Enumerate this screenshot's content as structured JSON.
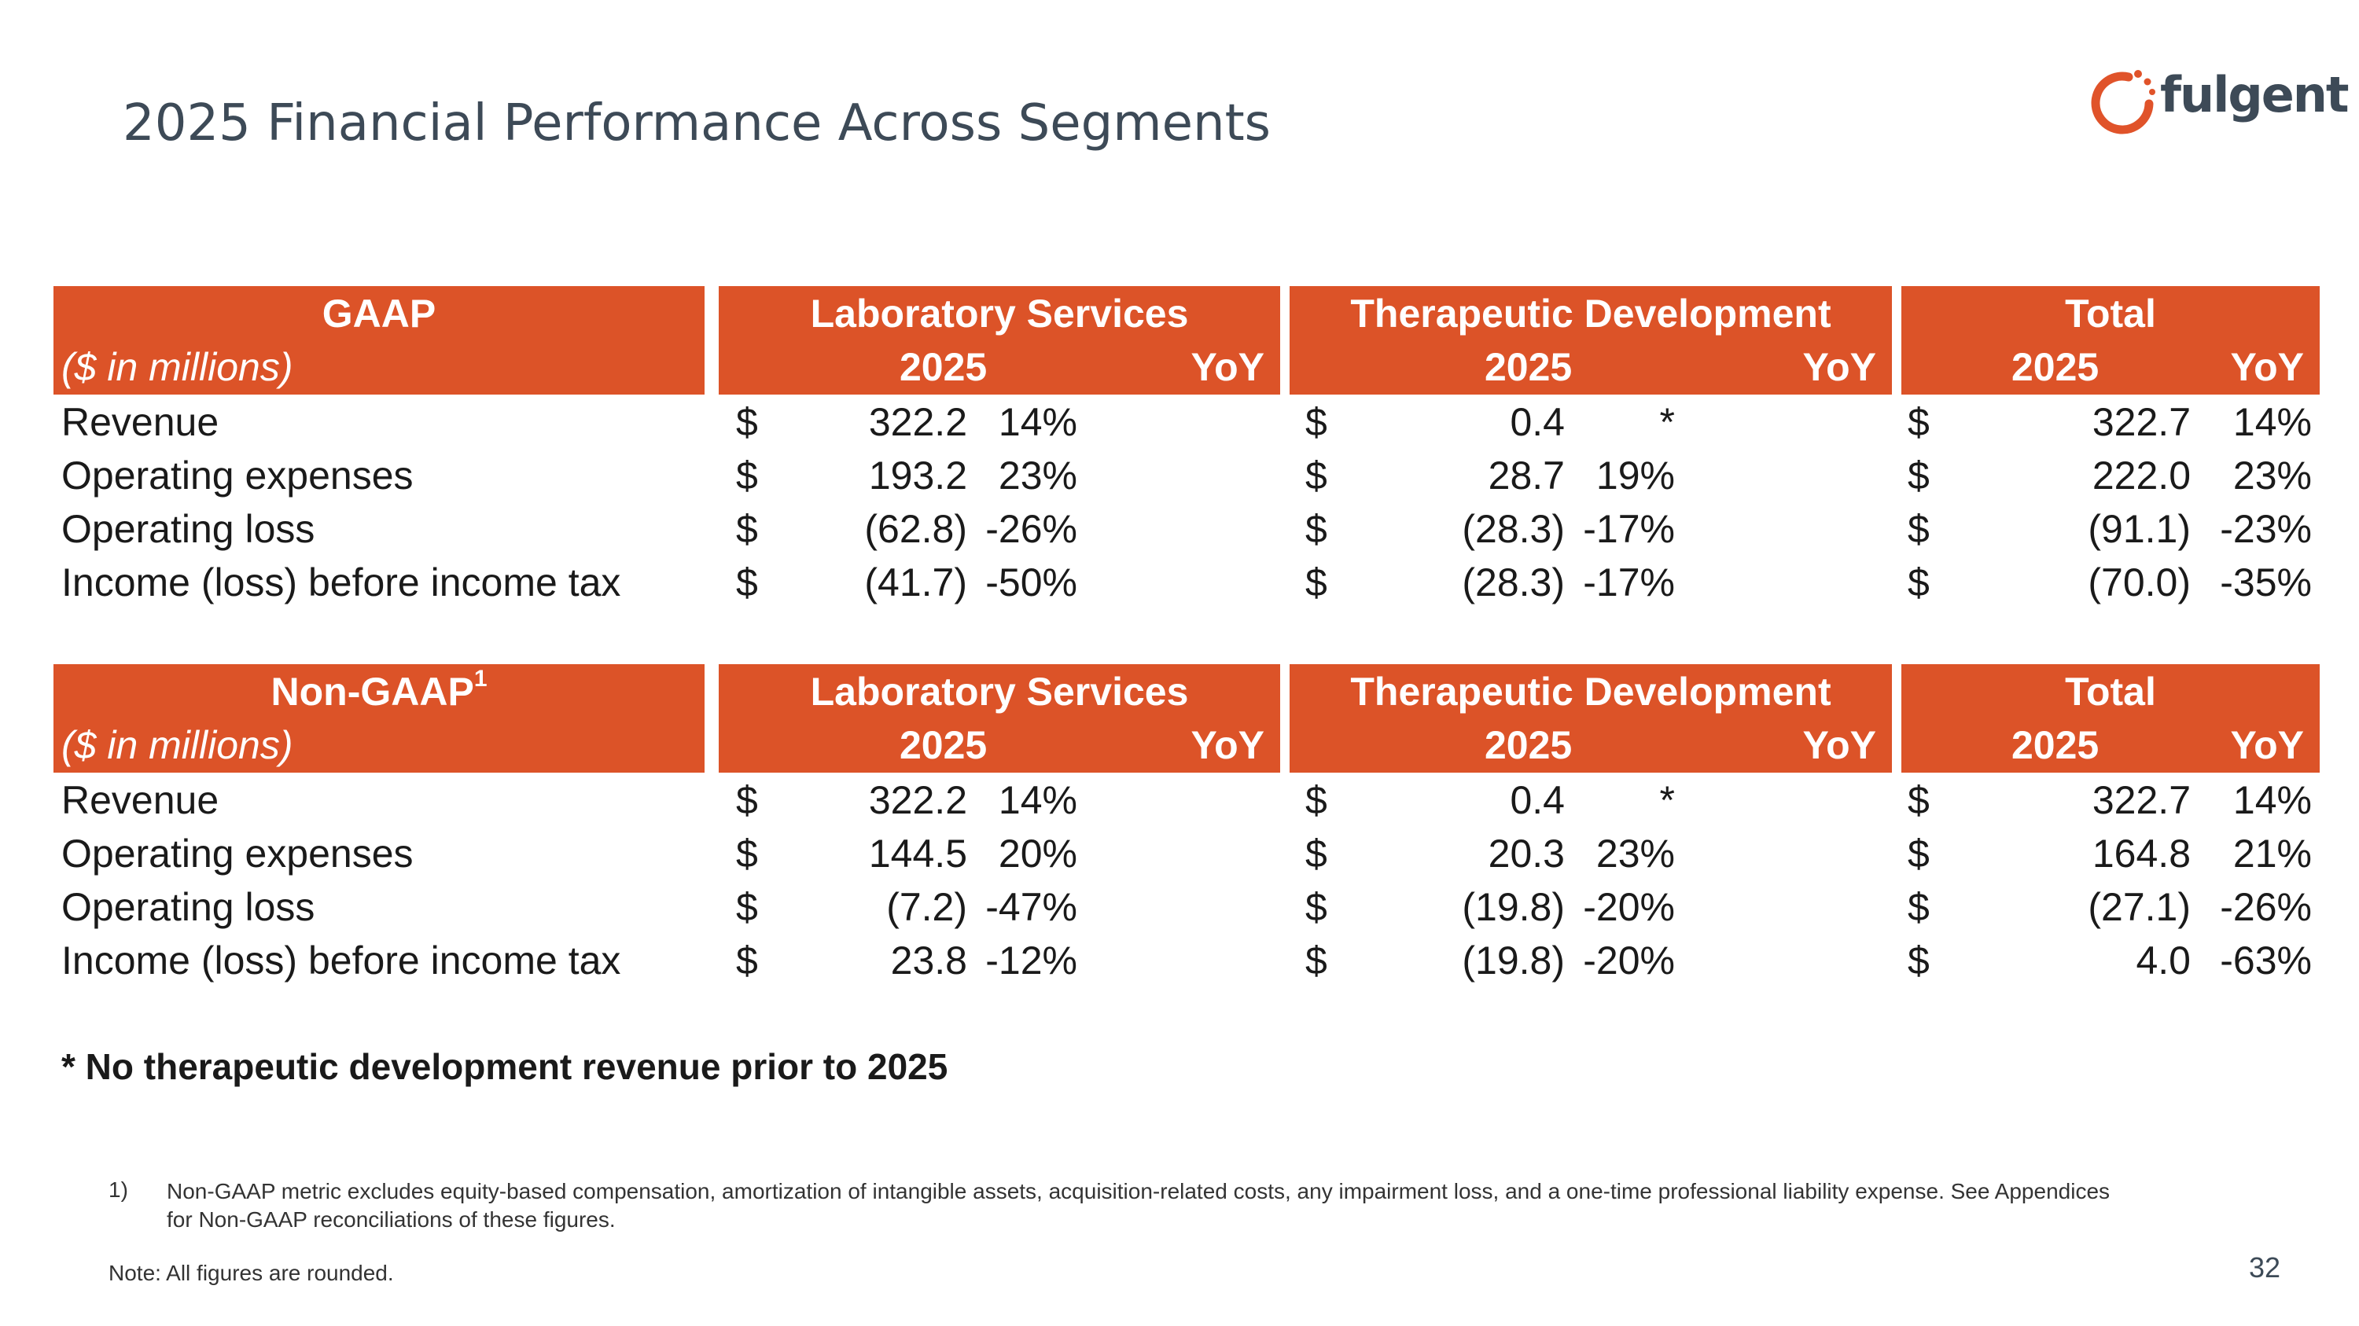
{
  "title": "2025 Financial Performance Across Segments",
  "logo": {
    "text": "fulgent",
    "accent": "#e0532a"
  },
  "header_color": "#dc5328",
  "sections": [
    {
      "heading": "GAAP",
      "heading_sup": "",
      "units": "($ in millions)",
      "col_groups": [
        "Laboratory Services",
        "Therapeutic Development",
        "Total"
      ],
      "sub_year": "2025",
      "sub_yoy": "YoY",
      "currency": "$",
      "rows": [
        {
          "label": "Revenue",
          "lab": "322.2",
          "lab_yoy": "14%",
          "ther": "0.4",
          "ther_yoy": "*",
          "tot": "322.7",
          "tot_yoy": "14%"
        },
        {
          "label": "Operating expenses",
          "lab": "193.2",
          "lab_yoy": "23%",
          "ther": "28.7",
          "ther_yoy": "19%",
          "tot": "222.0",
          "tot_yoy": "23%"
        },
        {
          "label": "Operating loss",
          "lab": "(62.8)",
          "lab_yoy": "-26%",
          "ther": "(28.3)",
          "ther_yoy": "-17%",
          "tot": "(91.1)",
          "tot_yoy": "-23%"
        },
        {
          "label": "Income (loss) before income tax",
          "lab": "(41.7)",
          "lab_yoy": "-50%",
          "ther": "(28.3)",
          "ther_yoy": "-17%",
          "tot": "(70.0)",
          "tot_yoy": "-35%"
        }
      ]
    },
    {
      "heading": "Non-GAAP",
      "heading_sup": "1",
      "units": "($ in millions)",
      "col_groups": [
        "Laboratory Services",
        "Therapeutic Development",
        "Total"
      ],
      "sub_year": "2025",
      "sub_yoy": "YoY",
      "currency": "$",
      "rows": [
        {
          "label": "Revenue",
          "lab": "322.2",
          "lab_yoy": "14%",
          "ther": "0.4",
          "ther_yoy": "*",
          "tot": "322.7",
          "tot_yoy": "14%"
        },
        {
          "label": "Operating expenses",
          "lab": "144.5",
          "lab_yoy": "20%",
          "ther": "20.3",
          "ther_yoy": "23%",
          "tot": "164.8",
          "tot_yoy": "21%"
        },
        {
          "label": "Operating loss",
          "lab": "(7.2)",
          "lab_yoy": "-47%",
          "ther": "(19.8)",
          "ther_yoy": "-20%",
          "tot": "(27.1)",
          "tot_yoy": "-26%"
        },
        {
          "label": "Income (loss) before income tax",
          "lab": "23.8",
          "lab_yoy": "-12%",
          "ther": "(19.8)",
          "ther_yoy": "-20%",
          "tot": "4.0",
          "tot_yoy": "-63%"
        }
      ]
    }
  ],
  "star_note": "* No therapeutic development revenue prior to 2025",
  "footnote_num": "1)",
  "footnote": "Non-GAAP metric excludes equity-based compensation, amortization of intangible assets, acquisition-related costs, any impairment loss, and a one-time professional liability expense.  See Appendices for Non-GAAP reconciliations of these figures.",
  "note": "Note: All figures are rounded.",
  "page_number": "32"
}
